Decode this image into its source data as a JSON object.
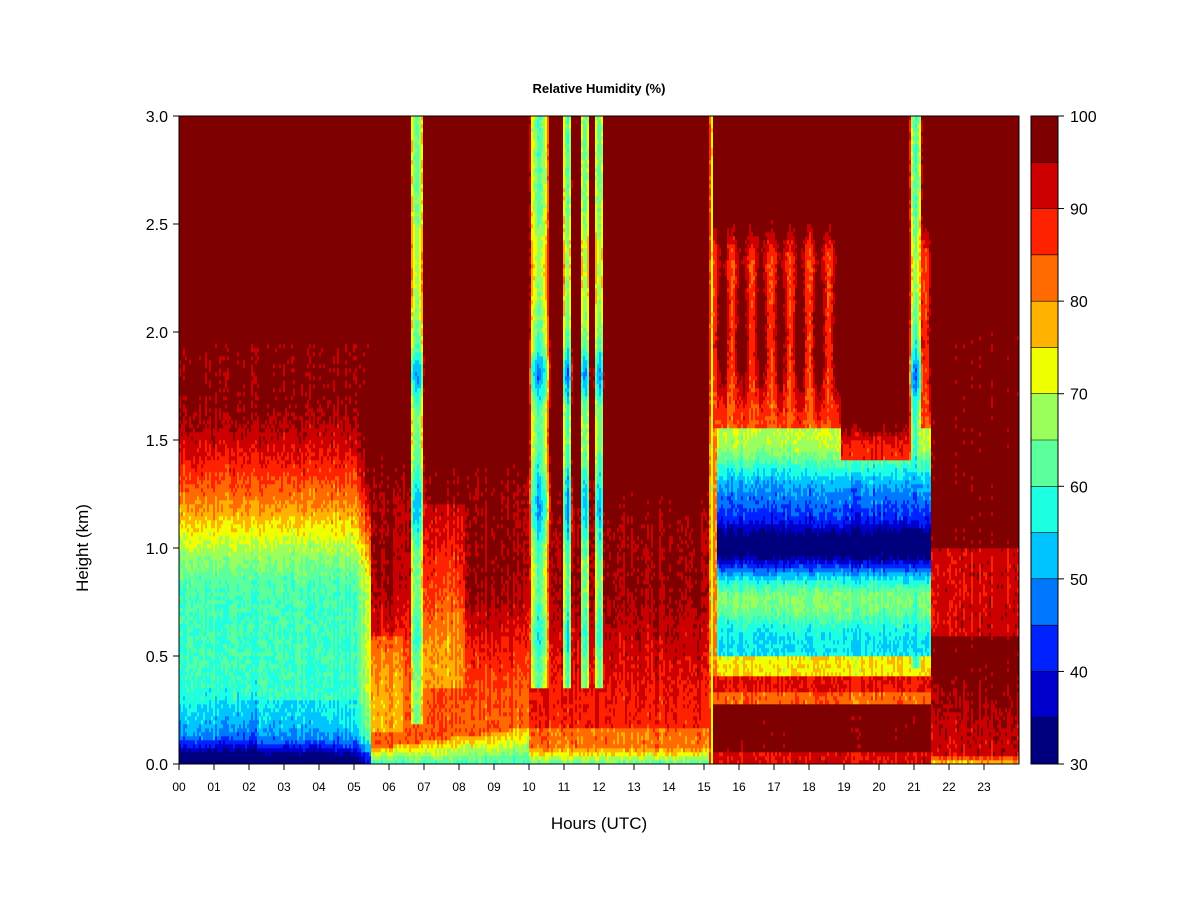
{
  "chart_data": {
    "type": "heatmap",
    "title": "Relative Humidity (%)",
    "xlabel": "Hours (UTC)",
    "ylabel": "Height (km)",
    "xlim": [
      0,
      24
    ],
    "ylim": [
      0,
      3
    ],
    "x_ticks": [
      "00",
      "01",
      "02",
      "03",
      "04",
      "05",
      "06",
      "07",
      "08",
      "09",
      "10",
      "11",
      "12",
      "13",
      "14",
      "15",
      "16",
      "17",
      "18",
      "19",
      "20",
      "21",
      "22",
      "23"
    ],
    "y_ticks": [
      "0.0",
      "0.5",
      "1.0",
      "1.5",
      "2.0",
      "2.5",
      "3.0"
    ],
    "colorbar": {
      "min": 30,
      "max": 100,
      "step": 5,
      "tick_labels": [
        "30",
        "40",
        "50",
        "60",
        "70",
        "80",
        "90",
        "100"
      ],
      "colors": [
        "#00007f",
        "#0000cc",
        "#0022ff",
        "#0077ff",
        "#00c4ff",
        "#1dffe2",
        "#5bff9c",
        "#9aff5d",
        "#f0ff00",
        "#ffb300",
        "#ff6b00",
        "#ff2200",
        "#cc0000",
        "#7f0000"
      ]
    },
    "features": {
      "saturated_columns_hours": [
        [
          6.7,
          6.9
        ],
        [
          10.1,
          10.5
        ],
        [
          11.0,
          11.2
        ],
        [
          11.5,
          11.7
        ],
        [
          11.9,
          12.1
        ],
        [
          15.2,
          15.3
        ],
        [
          20.9,
          21.2
        ]
      ],
      "low_rh_layer_hours": [
        15.2,
        21.2
      ],
      "low_rh_layer_height_km": [
        0.5,
        1.5
      ],
      "minimum_rh_height_km": 1.0,
      "minimum_rh_percent": 35
    }
  }
}
